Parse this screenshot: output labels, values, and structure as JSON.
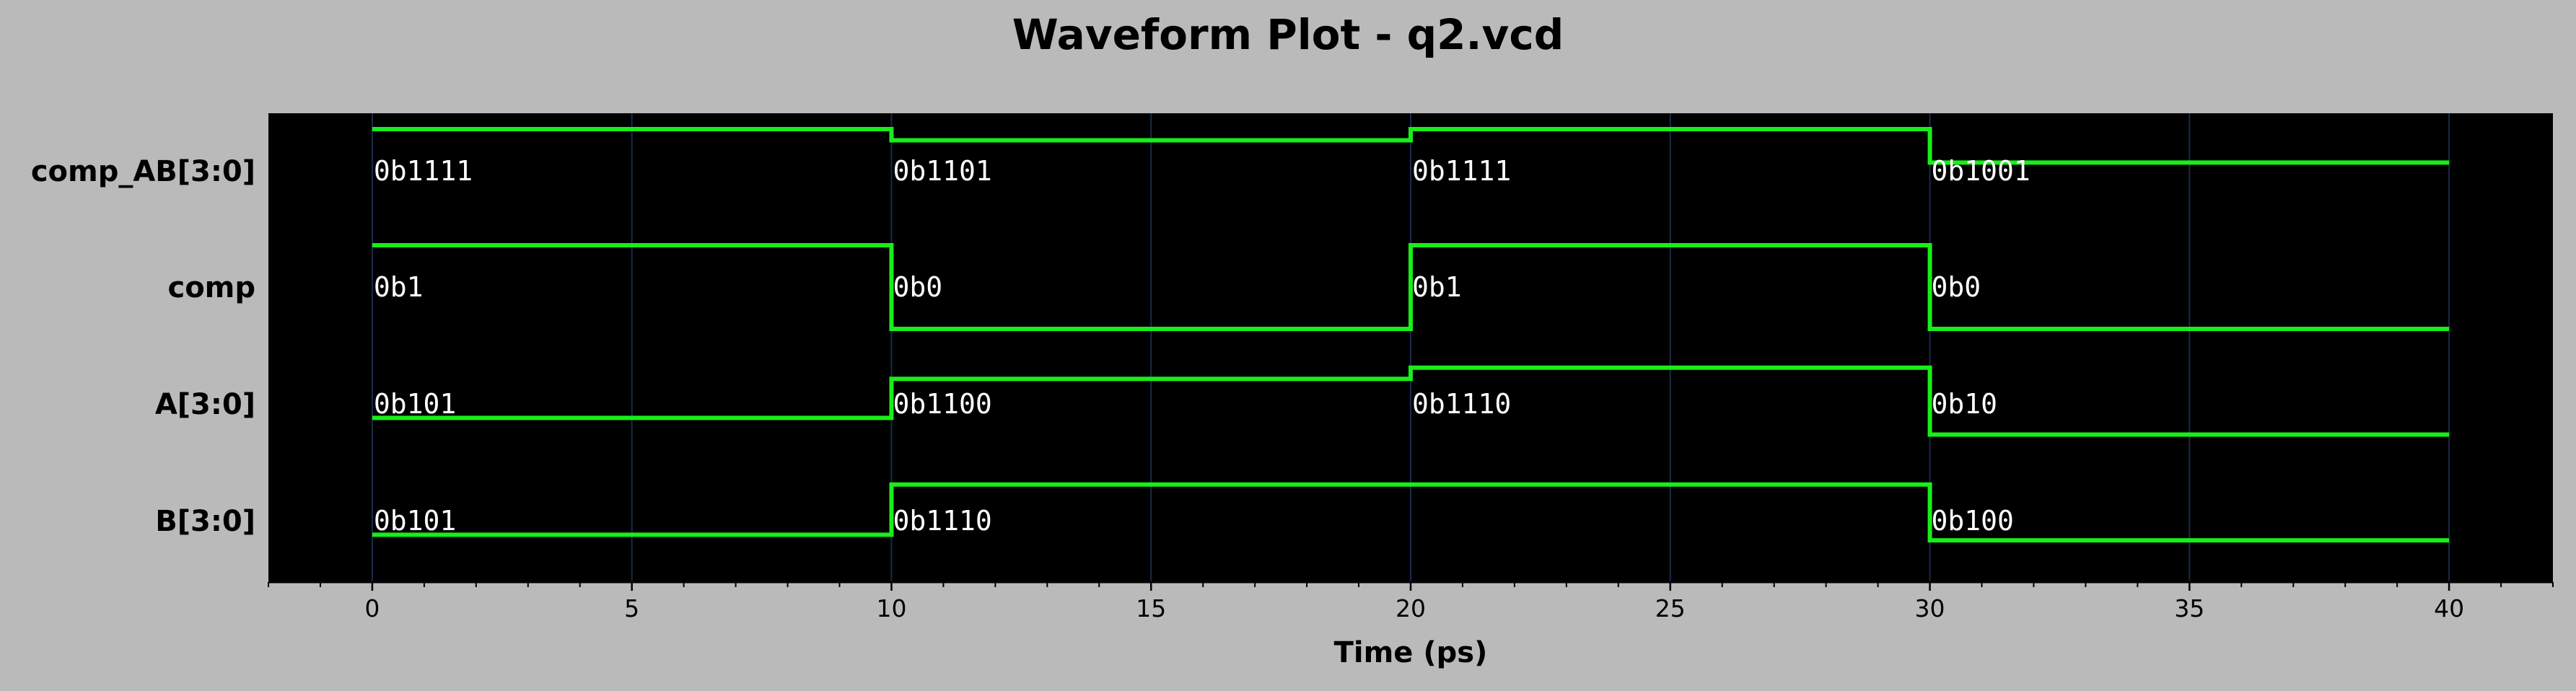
{
  "chart_data": {
    "type": "waveform",
    "title": "Waveform Plot - q2.vcd",
    "xlabel": "Time (ps)",
    "xlim": [
      -2,
      42
    ],
    "x_ticks": [
      "0",
      "5",
      "10",
      "15",
      "20",
      "25",
      "30",
      "35",
      "40"
    ],
    "grid": true,
    "colors": {
      "figure_bg": "#bababa",
      "plot_bg": "#000000",
      "trace": "#18ee18",
      "grid": "#1b2a4a",
      "value_text": "#ffffff"
    },
    "signals": [
      {
        "name": "comp_AB[3:0]",
        "segments": [
          {
            "t0": 0,
            "t1": 10,
            "label": "0b1111",
            "level": 15
          },
          {
            "t0": 10,
            "t1": 20,
            "label": "0b1101",
            "level": 13
          },
          {
            "t0": 20,
            "t1": 30,
            "label": "0b1111",
            "level": 15
          },
          {
            "t0": 30,
            "t1": 40,
            "label": "0b1001",
            "level": 9
          }
        ]
      },
      {
        "name": "comp",
        "segments": [
          {
            "t0": 0,
            "t1": 10,
            "label": "0b1",
            "level": 1
          },
          {
            "t0": 10,
            "t1": 20,
            "label": "0b0",
            "level": 0
          },
          {
            "t0": 20,
            "t1": 30,
            "label": "0b1",
            "level": 1
          },
          {
            "t0": 30,
            "t1": 40,
            "label": "0b0",
            "level": 0
          }
        ]
      },
      {
        "name": "A[3:0]",
        "segments": [
          {
            "t0": 0,
            "t1": 10,
            "label": "0b101",
            "level": 5
          },
          {
            "t0": 10,
            "t1": 20,
            "label": "0b1100",
            "level": 12
          },
          {
            "t0": 20,
            "t1": 30,
            "label": "0b1110",
            "level": 14
          },
          {
            "t0": 30,
            "t1": 40,
            "label": "0b10",
            "level": 2
          }
        ]
      },
      {
        "name": "B[3:0]",
        "segments": [
          {
            "t0": 0,
            "t1": 10,
            "label": "0b101",
            "level": 5
          },
          {
            "t0": 10,
            "t1": 30,
            "label": "0b1110",
            "level": 14
          },
          {
            "t0": 30,
            "t1": 40,
            "label": "0b100",
            "level": 4
          }
        ]
      }
    ]
  }
}
